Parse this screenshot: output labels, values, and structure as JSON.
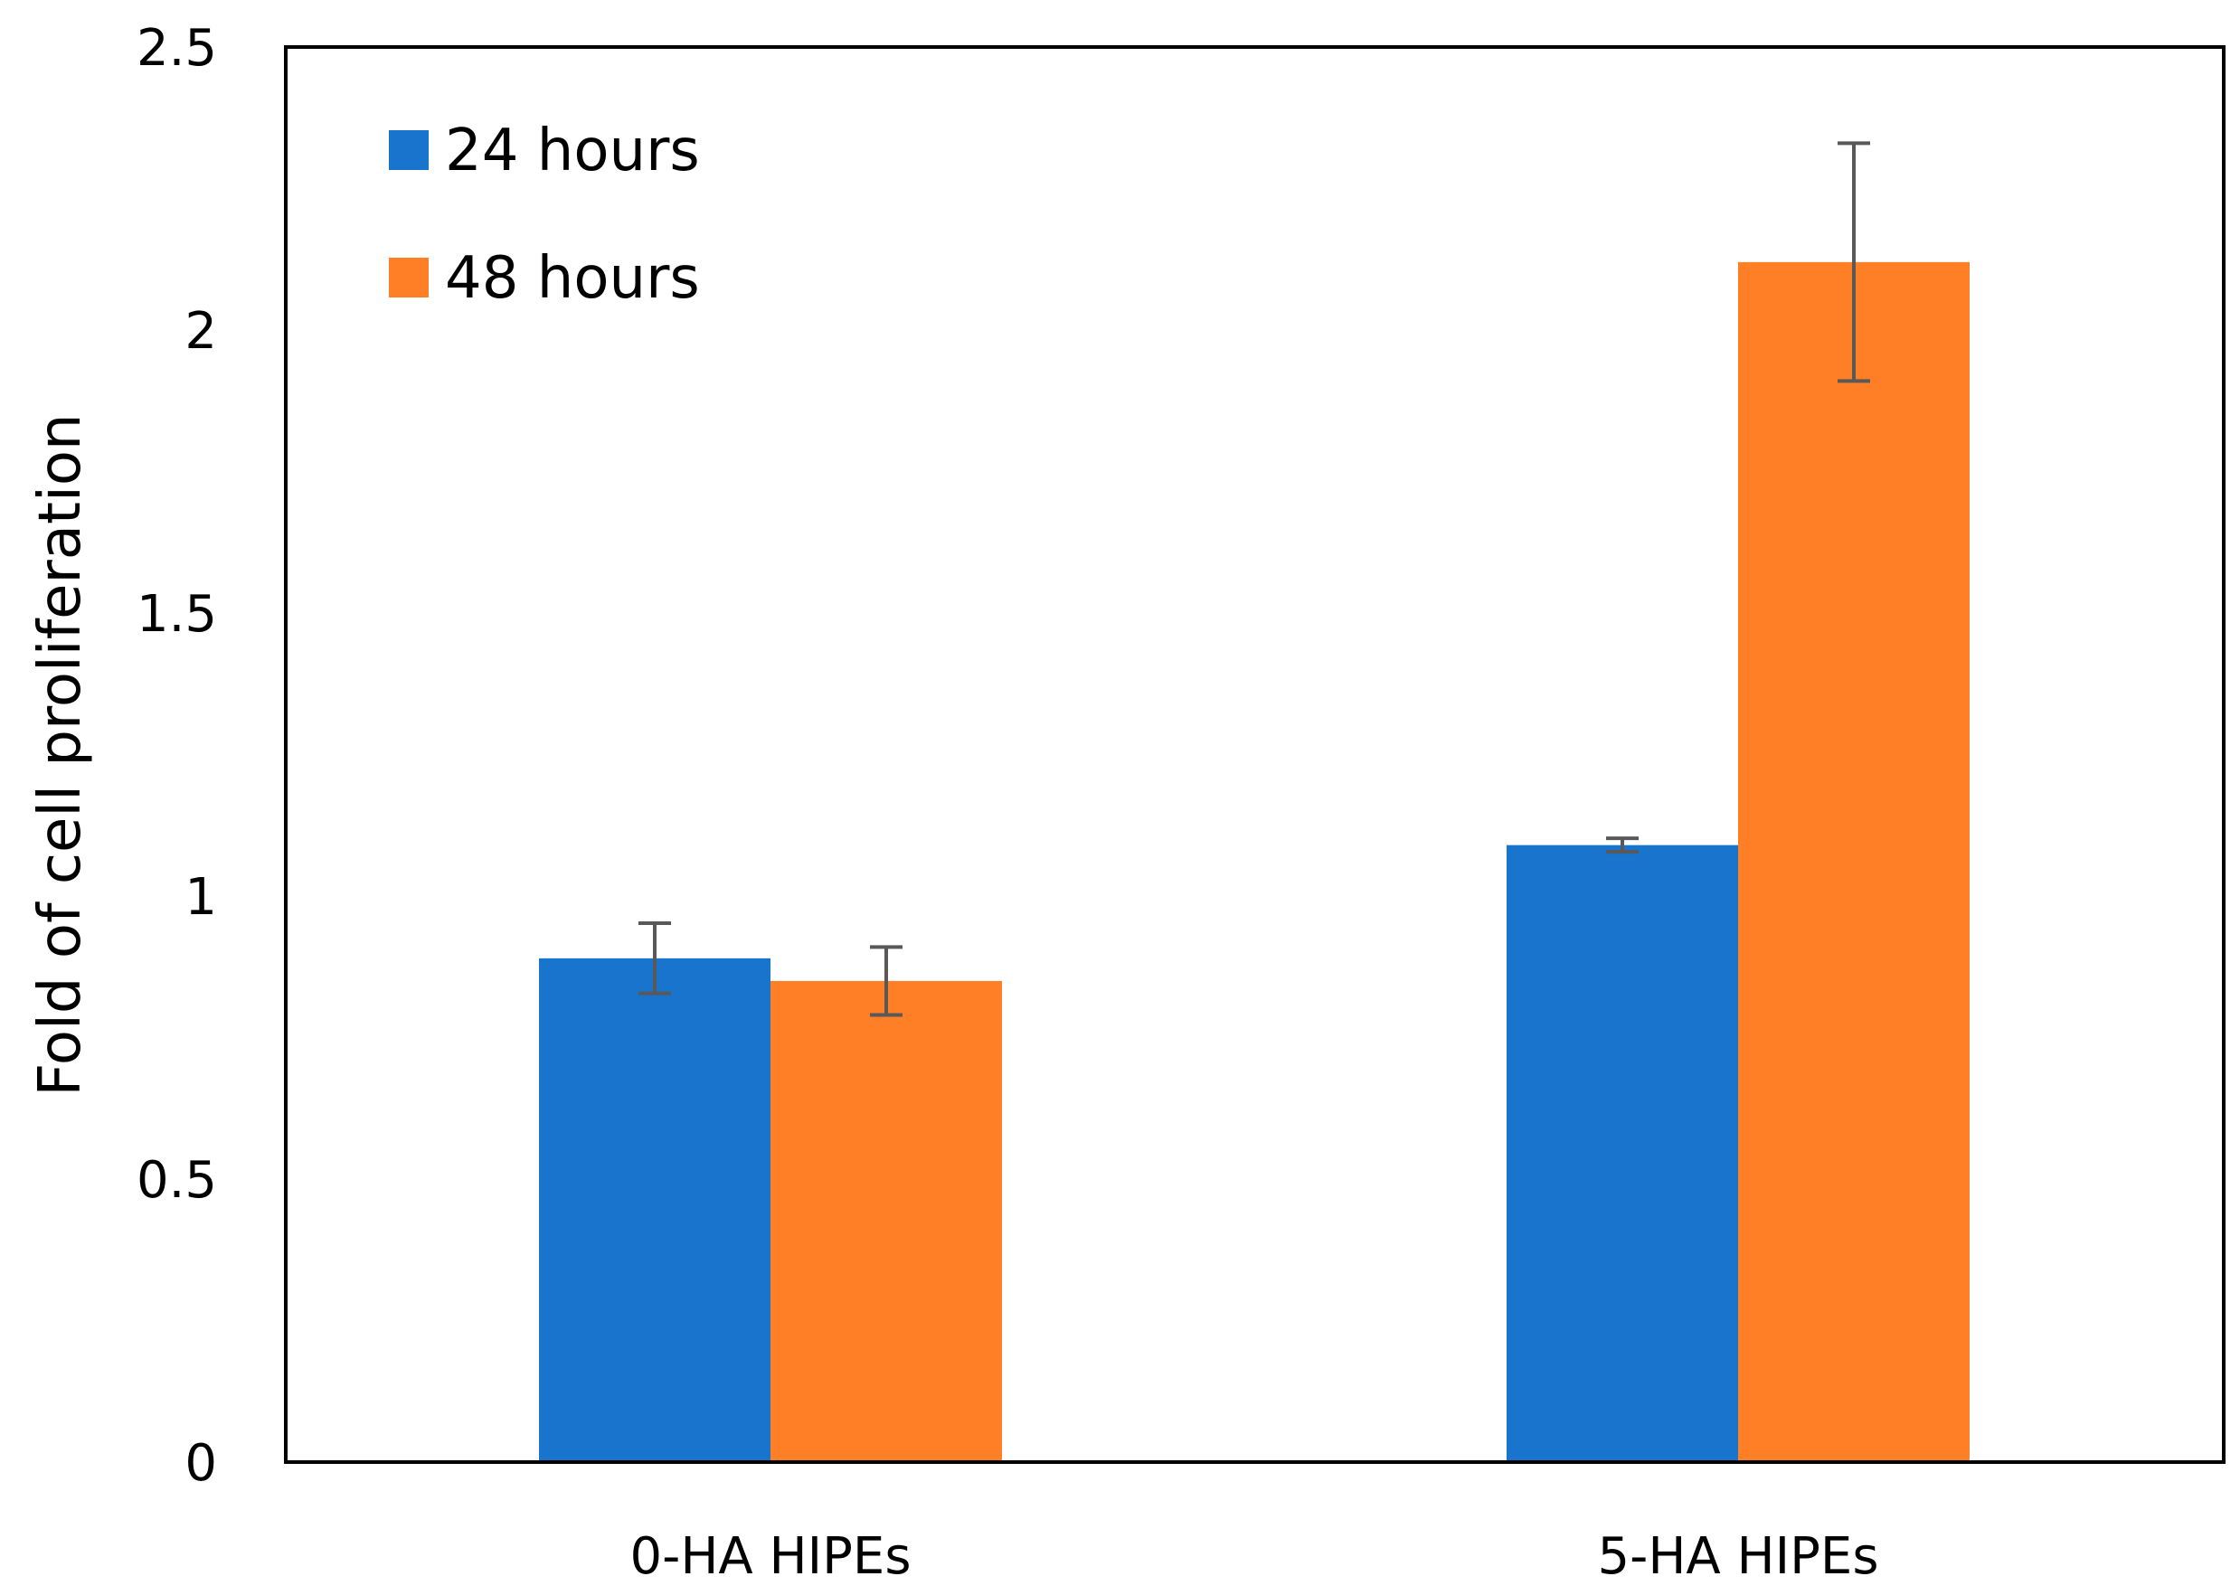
{
  "chart_data": {
    "type": "bar",
    "title": "",
    "xlabel": "",
    "ylabel": "Fold of cell proliferation",
    "categories": [
      "0-HA HIPEs",
      "5-HA HIPEs"
    ],
    "series": [
      {
        "name": "24 hours",
        "color": "#1874CD",
        "values": [
          0.89,
          1.09
        ],
        "errors": [
          0.062,
          0.012
        ]
      },
      {
        "name": "48 hours",
        "color": "#FF7F27",
        "values": [
          0.85,
          2.12
        ],
        "errors": [
          0.06,
          0.21
        ]
      }
    ],
    "ylim": [
      0,
      2.5
    ],
    "yticks": [
      "0",
      "0.5",
      "1",
      "1.5",
      "2",
      "2.5"
    ],
    "grid": false,
    "legend_position": "top-left",
    "error_bar_color": "#595959"
  }
}
